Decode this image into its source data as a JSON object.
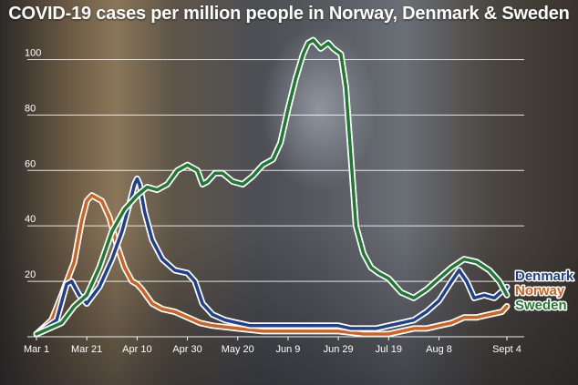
{
  "chart_data": {
    "type": "line",
    "title": "COVID-19 cases per million people in Norway, Denmark & Sweden",
    "xlabel": "",
    "ylabel": "",
    "ylim": [
      0,
      110
    ],
    "yticks": [
      20,
      40,
      60,
      80,
      100
    ],
    "grid": true,
    "x_tick_labels": [
      {
        "label": "Mar 1",
        "day": 0
      },
      {
        "label": "Mar 21",
        "day": 20
      },
      {
        "label": "Apr 10",
        "day": 40
      },
      {
        "label": "Apr 30",
        "day": 60
      },
      {
        "label": "May 20",
        "day": 80
      },
      {
        "label": "Jun 9",
        "day": 100
      },
      {
        "label": "Jun 29",
        "day": 120
      },
      {
        "label": "Jul 19",
        "day": 140
      },
      {
        "label": "Aug 8",
        "day": 160
      },
      {
        "label": "Sept 4",
        "day": 187
      }
    ],
    "x_unit": "days since Mar 1",
    "legend_placement": "right",
    "series": [
      {
        "name": "Denmark",
        "color": "#1f3f8f",
        "points": [
          [
            0,
            1
          ],
          [
            8,
            6
          ],
          [
            12,
            19
          ],
          [
            14,
            20
          ],
          [
            17,
            15
          ],
          [
            20,
            12
          ],
          [
            25,
            18
          ],
          [
            30,
            28
          ],
          [
            34,
            38
          ],
          [
            37,
            48
          ],
          [
            39,
            55
          ],
          [
            40,
            57
          ],
          [
            41,
            55
          ],
          [
            43,
            45
          ],
          [
            46,
            35
          ],
          [
            50,
            28
          ],
          [
            55,
            24
          ],
          [
            60,
            23
          ],
          [
            63,
            20
          ],
          [
            66,
            12
          ],
          [
            70,
            8
          ],
          [
            75,
            6
          ],
          [
            80,
            5
          ],
          [
            85,
            4
          ],
          [
            90,
            4
          ],
          [
            100,
            4
          ],
          [
            110,
            4
          ],
          [
            120,
            4
          ],
          [
            125,
            3
          ],
          [
            130,
            3
          ],
          [
            135,
            3
          ],
          [
            140,
            4
          ],
          [
            145,
            5
          ],
          [
            150,
            6
          ],
          [
            155,
            9
          ],
          [
            160,
            13
          ],
          [
            165,
            20
          ],
          [
            168,
            24
          ],
          [
            171,
            20
          ],
          [
            174,
            14
          ],
          [
            178,
            15
          ],
          [
            182,
            14
          ],
          [
            187,
            18
          ]
        ]
      },
      {
        "name": "Norway",
        "color": "#d2601e",
        "points": [
          [
            0,
            1
          ],
          [
            6,
            6
          ],
          [
            10,
            15
          ],
          [
            15,
            27
          ],
          [
            18,
            42
          ],
          [
            20,
            49
          ],
          [
            22,
            51
          ],
          [
            26,
            49
          ],
          [
            29,
            43
          ],
          [
            32,
            33
          ],
          [
            35,
            25
          ],
          [
            38,
            20
          ],
          [
            40,
            19
          ],
          [
            42,
            17
          ],
          [
            46,
            12
          ],
          [
            50,
            10
          ],
          [
            55,
            9
          ],
          [
            60,
            7
          ],
          [
            65,
            5
          ],
          [
            70,
            4
          ],
          [
            80,
            3
          ],
          [
            90,
            2
          ],
          [
            100,
            2
          ],
          [
            110,
            2
          ],
          [
            120,
            2
          ],
          [
            130,
            1
          ],
          [
            140,
            1
          ],
          [
            145,
            2
          ],
          [
            150,
            3
          ],
          [
            155,
            3
          ],
          [
            160,
            4
          ],
          [
            165,
            5
          ],
          [
            170,
            7
          ],
          [
            175,
            7
          ],
          [
            180,
            8
          ],
          [
            185,
            9
          ],
          [
            187,
            11
          ]
        ]
      },
      {
        "name": "Sweden",
        "color": "#1f7a31",
        "points": [
          [
            0,
            1
          ],
          [
            10,
            5
          ],
          [
            15,
            11
          ],
          [
            20,
            15
          ],
          [
            25,
            25
          ],
          [
            30,
            38
          ],
          [
            35,
            46
          ],
          [
            40,
            51
          ],
          [
            44,
            54
          ],
          [
            48,
            53
          ],
          [
            52,
            55
          ],
          [
            56,
            60
          ],
          [
            60,
            62
          ],
          [
            64,
            60
          ],
          [
            66,
            55
          ],
          [
            68,
            56
          ],
          [
            71,
            59
          ],
          [
            74,
            59
          ],
          [
            78,
            56
          ],
          [
            82,
            55
          ],
          [
            86,
            58
          ],
          [
            90,
            62
          ],
          [
            94,
            64
          ],
          [
            97,
            70
          ],
          [
            100,
            82
          ],
          [
            103,
            93
          ],
          [
            106,
            102
          ],
          [
            108,
            106
          ],
          [
            110,
            107
          ],
          [
            113,
            104
          ],
          [
            116,
            106
          ],
          [
            118,
            104
          ],
          [
            121,
            102
          ],
          [
            123,
            90
          ],
          [
            125,
            65
          ],
          [
            127,
            40
          ],
          [
            130,
            30
          ],
          [
            133,
            25
          ],
          [
            136,
            23
          ],
          [
            140,
            21
          ],
          [
            145,
            16
          ],
          [
            150,
            14
          ],
          [
            155,
            17
          ],
          [
            160,
            21
          ],
          [
            165,
            25
          ],
          [
            170,
            28
          ],
          [
            175,
            27
          ],
          [
            180,
            24
          ],
          [
            184,
            20
          ],
          [
            187,
            15
          ]
        ]
      }
    ]
  }
}
